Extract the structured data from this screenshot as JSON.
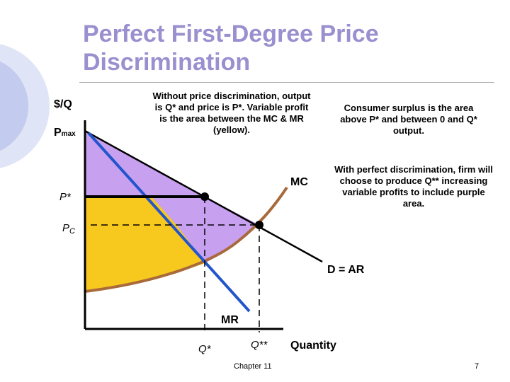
{
  "slide": {
    "title_line1": "Perfect First-Degree Price",
    "title_line2": "Discrimination",
    "note_without": "Without price discrimination, output is Q* and price is P*. Variable profit is the area between the MC & MR (yellow).",
    "note_consumer_surplus": "Consumer surplus is the area above P* and between 0 and Q* output.",
    "note_with": "With perfect discrimination, firm will choose to produce Q** increasing variable profits to include purple area.",
    "footer_chapter": "Chapter 11",
    "footer_page": "7"
  },
  "diagram": {
    "y_axis_label": "$/Q",
    "p_max_main": "P",
    "p_max_sub": "max",
    "p_star_label": "P*",
    "p_c_main": "P",
    "p_c_sub": "C",
    "mc_label": "MC",
    "demand_label": "D = AR",
    "mr_label": "MR",
    "q_star_label": "Q*",
    "q_double_star_label": "Q**",
    "x_axis_label": "Quantity",
    "colors": {
      "title": "#9a8fcf",
      "yellow_area": "#f7c81e",
      "purple_area": "#c8a0f0",
      "mc_curve": "#a86a3a",
      "mr_curve": "#2255cc",
      "demand_curve": "#000000",
      "left_decoration": "#aab6e8"
    }
  }
}
